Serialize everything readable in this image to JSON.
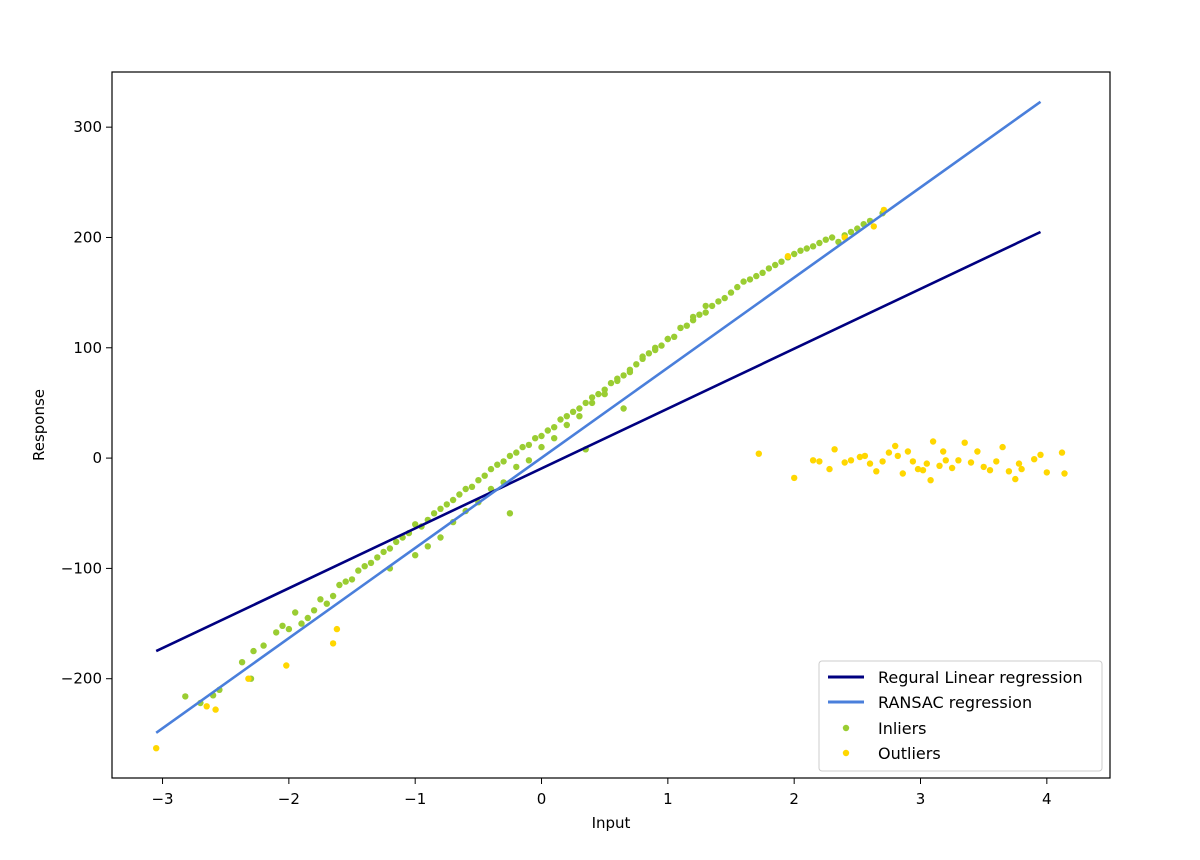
{
  "chart_data": {
    "type": "scatter",
    "title": "",
    "xlabel": "Input",
    "ylabel": "Response",
    "xlim": [
      -3.4,
      4.5
    ],
    "ylim": [
      -290,
      350
    ],
    "x_ticks": [
      -3,
      -2,
      -1,
      0,
      1,
      2,
      3,
      4
    ],
    "x_tick_labels": [
      "−3",
      "−2",
      "−1",
      "0",
      "1",
      "2",
      "3",
      "4"
    ],
    "y_ticks": [
      -200,
      -100,
      0,
      100,
      200,
      300
    ],
    "y_tick_labels": [
      "−200",
      "−100",
      "0",
      "100",
      "200",
      "300"
    ],
    "grid": false,
    "legend_position": "lower-right",
    "colors": {
      "linear": "#000080",
      "ransac": "#4a7fdb",
      "inliers": "#9acd32",
      "outliers": "#ffd700"
    },
    "lines": [
      {
        "name": "Regural Linear regression",
        "x": [
          -3.05,
          3.95
        ],
        "y": [
          -175,
          205
        ]
      },
      {
        "name": "RANSAC regression",
        "x": [
          -3.05,
          3.95
        ],
        "y": [
          -249,
          323
        ]
      }
    ],
    "series": [
      {
        "name": "Inliers",
        "x": [
          -2.82,
          -2.7,
          -2.6,
          -2.55,
          -2.37,
          -2.3,
          -2.28,
          -2.2,
          -2.1,
          -2.05,
          -2.0,
          -1.95,
          -1.9,
          -1.85,
          -1.8,
          -1.75,
          -1.7,
          -1.65,
          -1.6,
          -1.55,
          -1.5,
          -1.45,
          -1.4,
          -1.35,
          -1.3,
          -1.25,
          -1.2,
          -1.15,
          -1.1,
          -1.05,
          -1.0,
          -0.95,
          -0.9,
          -0.85,
          -0.8,
          -0.75,
          -0.7,
          -0.65,
          -0.6,
          -0.55,
          -0.5,
          -0.45,
          -0.4,
          -0.35,
          -0.3,
          -0.25,
          -0.2,
          -0.15,
          -0.1,
          -0.05,
          0.0,
          0.05,
          0.1,
          0.15,
          0.2,
          0.25,
          0.3,
          0.35,
          0.4,
          0.45,
          0.5,
          0.55,
          0.6,
          0.65,
          0.7,
          0.75,
          0.8,
          0.85,
          0.9,
          0.95,
          1.0,
          1.05,
          1.1,
          1.15,
          1.2,
          1.25,
          1.3,
          1.35,
          1.4,
          1.45,
          1.5,
          1.55,
          1.6,
          1.65,
          1.7,
          1.75,
          1.8,
          1.85,
          1.9,
          1.95,
          2.0,
          2.05,
          2.1,
          2.15,
          2.2,
          2.25,
          2.3,
          2.35,
          2.4,
          2.45,
          2.5,
          2.55,
          2.6,
          2.7,
          -1.0,
          -0.8,
          -0.6,
          -0.4,
          -0.2,
          0.0,
          0.2,
          0.4,
          0.6,
          0.8,
          1.0,
          1.2,
          -1.2,
          -0.9,
          -0.7,
          -0.5,
          -0.3,
          -0.1,
          0.1,
          0.3,
          0.5,
          0.7,
          0.9,
          1.1,
          1.3,
          -0.25,
          0.35,
          0.65
        ],
        "y": [
          -216,
          -222,
          -215,
          -210,
          -185,
          -200,
          -175,
          -170,
          -158,
          -152,
          -155,
          -140,
          -150,
          -145,
          -138,
          -128,
          -132,
          -125,
          -115,
          -112,
          -110,
          -102,
          -98,
          -95,
          -90,
          -85,
          -82,
          -76,
          -72,
          -68,
          -60,
          -62,
          -56,
          -50,
          -46,
          -42,
          -38,
          -33,
          -28,
          -26,
          -20,
          -16,
          -10,
          -6,
          -3,
          2,
          5,
          10,
          12,
          18,
          20,
          25,
          28,
          35,
          38,
          42,
          45,
          50,
          55,
          58,
          62,
          68,
          72,
          75,
          80,
          85,
          92,
          95,
          100,
          102,
          108,
          110,
          118,
          120,
          125,
          130,
          132,
          138,
          142,
          145,
          150,
          155,
          160,
          162,
          165,
          168,
          172,
          175,
          178,
          182,
          185,
          188,
          190,
          192,
          195,
          198,
          200,
          196,
          202,
          205,
          208,
          212,
          215,
          222,
          -88,
          -72,
          -48,
          -28,
          -8,
          10,
          30,
          50,
          70,
          90,
          108,
          128,
          -100,
          -80,
          -58,
          -40,
          -22,
          -2,
          18,
          38,
          58,
          78,
          98,
          118,
          138,
          -50,
          8,
          45
        ]
      },
      {
        "name": "Outliers",
        "x": [
          -3.05,
          -2.65,
          -2.58,
          -2.32,
          -2.02,
          -1.65,
          -1.62,
          1.72,
          1.95,
          2.0,
          2.15,
          2.2,
          2.28,
          2.32,
          2.4,
          2.45,
          2.52,
          2.56,
          2.6,
          2.65,
          2.7,
          2.75,
          2.8,
          2.82,
          2.86,
          2.9,
          2.94,
          2.98,
          3.02,
          3.05,
          3.08,
          3.1,
          3.15,
          3.18,
          3.2,
          3.25,
          3.3,
          3.35,
          3.4,
          3.45,
          3.5,
          3.55,
          3.6,
          3.65,
          3.7,
          3.75,
          3.78,
          3.8,
          3.9,
          3.95,
          4.0,
          4.12,
          4.14,
          2.4,
          2.63,
          2.71
        ],
        "y": [
          -263,
          -225,
          -228,
          -200,
          -188,
          -168,
          -155,
          4,
          183,
          -18,
          -2,
          -3,
          -10,
          8,
          -4,
          -2,
          1,
          2,
          -5,
          -12,
          -3,
          5,
          11,
          2,
          -14,
          6,
          -3,
          -10,
          -11,
          -5,
          -20,
          15,
          -7,
          6,
          -2,
          -9,
          -2,
          14,
          -4,
          6,
          -8,
          -11,
          -3,
          10,
          -12,
          -19,
          -5,
          -10,
          -1,
          3,
          -13,
          5,
          -14,
          200,
          210,
          225
        ]
      }
    ]
  }
}
